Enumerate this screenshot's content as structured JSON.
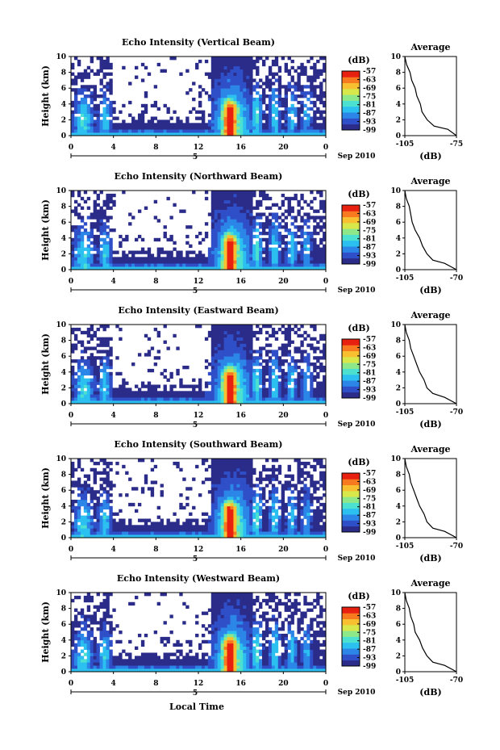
{
  "figure": {
    "xlabel": "Local Time",
    "date_label": "Sep 2010",
    "day_label": "5",
    "height_label": "Height (km)",
    "colorbar_title": "(dB)",
    "colorbar_ticks": [
      "-57",
      "-63",
      "-69",
      "-75",
      "-81",
      "-87",
      "-93",
      "-99"
    ],
    "average_title": "Average",
    "average_xlabel": "(dB)",
    "colors": {
      "background": "#ffffff",
      "axis": "#000000",
      "colormap": [
        "#2b2c8a",
        "#2f4fc8",
        "#2b86e8",
        "#2bc0f0",
        "#4ce0d0",
        "#8ee88a",
        "#d8e84a",
        "#f8c030",
        "#f87a20",
        "#e82010"
      ]
    }
  },
  "chart_data": [
    {
      "type": "heatmap",
      "title": "Echo Intensity (Vertical Beam)",
      "x_ticks": [
        "0",
        "4",
        "8",
        "12",
        "16",
        "20",
        "0"
      ],
      "y_ticks": [
        "0",
        "2",
        "4",
        "6",
        "8",
        "10"
      ],
      "xlim": [
        0,
        24
      ],
      "ylim": [
        0,
        10
      ],
      "profile": {
        "title": "Average",
        "x_ticks": [
          "-105",
          "-75"
        ],
        "xlim": [
          -105,
          -75
        ],
        "y_ticks": [
          "0",
          "2",
          "4",
          "6",
          "8",
          "10"
        ],
        "points": [
          [
            -75,
            0
          ],
          [
            -80,
            0.8
          ],
          [
            -88,
            1.2
          ],
          [
            -92,
            2
          ],
          [
            -95,
            3
          ],
          [
            -96,
            4
          ],
          [
            -98,
            5
          ],
          [
            -99,
            6
          ],
          [
            -101,
            7
          ],
          [
            -102,
            8
          ],
          [
            -104,
            9
          ],
          [
            -105,
            10
          ]
        ]
      }
    },
    {
      "type": "heatmap",
      "title": "Echo Intensity (Northward Beam)",
      "x_ticks": [
        "0",
        "4",
        "8",
        "12",
        "16",
        "20",
        "0"
      ],
      "y_ticks": [
        "0",
        "2",
        "4",
        "6",
        "8",
        "10"
      ],
      "xlim": [
        0,
        24
      ],
      "ylim": [
        0,
        10
      ],
      "profile": {
        "title": "Average",
        "x_ticks": [
          "-105",
          "-70"
        ],
        "xlim": [
          -105,
          -70
        ],
        "y_ticks": [
          "0",
          "2",
          "4",
          "6",
          "8",
          "10"
        ],
        "points": [
          [
            -70,
            0
          ],
          [
            -78,
            0.8
          ],
          [
            -86,
            1.2
          ],
          [
            -90,
            2
          ],
          [
            -93,
            3
          ],
          [
            -95,
            4
          ],
          [
            -98,
            5
          ],
          [
            -100,
            6
          ],
          [
            -101,
            7
          ],
          [
            -102,
            8
          ],
          [
            -104,
            9
          ],
          [
            -105,
            10
          ]
        ]
      }
    },
    {
      "type": "heatmap",
      "title": "Echo Intensity (Eastward Beam)",
      "x_ticks": [
        "0",
        "4",
        "8",
        "12",
        "16",
        "20",
        "0"
      ],
      "y_ticks": [
        "0",
        "2",
        "4",
        "6",
        "8",
        "10"
      ],
      "xlim": [
        0,
        24
      ],
      "ylim": [
        0,
        10
      ],
      "profile": {
        "title": "Average",
        "x_ticks": [
          "-105",
          "-70"
        ],
        "xlim": [
          -105,
          -70
        ],
        "y_ticks": [
          "0",
          "2",
          "4",
          "6",
          "8",
          "10"
        ],
        "points": [
          [
            -70,
            0
          ],
          [
            -78,
            0.8
          ],
          [
            -86,
            1.3
          ],
          [
            -90,
            2
          ],
          [
            -92,
            3
          ],
          [
            -95,
            4
          ],
          [
            -97,
            5
          ],
          [
            -99,
            6
          ],
          [
            -101,
            7
          ],
          [
            -102,
            8
          ],
          [
            -104,
            9
          ],
          [
            -105,
            10
          ]
        ]
      }
    },
    {
      "type": "heatmap",
      "title": "Echo Intensity (Southward Beam)",
      "x_ticks": [
        "0",
        "4",
        "8",
        "12",
        "16",
        "20",
        "0"
      ],
      "y_ticks": [
        "0",
        "2",
        "4",
        "6",
        "8",
        "10"
      ],
      "xlim": [
        0,
        24
      ],
      "ylim": [
        0,
        10
      ],
      "profile": {
        "title": "Average",
        "x_ticks": [
          "-105",
          "-70"
        ],
        "xlim": [
          -105,
          -70
        ],
        "y_ticks": [
          "0",
          "2",
          "4",
          "6",
          "8",
          "10"
        ],
        "points": [
          [
            -70,
            0
          ],
          [
            -78,
            0.8
          ],
          [
            -86,
            1.2
          ],
          [
            -90,
            2
          ],
          [
            -92,
            3
          ],
          [
            -95,
            4
          ],
          [
            -97,
            5
          ],
          [
            -99,
            6
          ],
          [
            -101,
            7
          ],
          [
            -102,
            8
          ],
          [
            -104,
            9
          ],
          [
            -105,
            10
          ]
        ]
      }
    },
    {
      "type": "heatmap",
      "title": "Echo Intensity (Westward Beam)",
      "x_ticks": [
        "0",
        "4",
        "8",
        "12",
        "16",
        "20",
        "0"
      ],
      "y_ticks": [
        "0",
        "2",
        "4",
        "6",
        "8",
        "10"
      ],
      "xlim": [
        0,
        24
      ],
      "ylim": [
        0,
        10
      ],
      "profile": {
        "title": "Average",
        "x_ticks": [
          "-105",
          "-70"
        ],
        "xlim": [
          -105,
          -70
        ],
        "y_ticks": [
          "0",
          "2",
          "4",
          "6",
          "8",
          "10"
        ],
        "points": [
          [
            -70,
            0
          ],
          [
            -78,
            0.8
          ],
          [
            -86,
            1.2
          ],
          [
            -90,
            2
          ],
          [
            -93,
            3
          ],
          [
            -95,
            4
          ],
          [
            -98,
            5
          ],
          [
            -99,
            6
          ],
          [
            -101,
            7
          ],
          [
            -102,
            8
          ],
          [
            -104,
            9
          ],
          [
            -105,
            10
          ]
        ]
      }
    }
  ]
}
